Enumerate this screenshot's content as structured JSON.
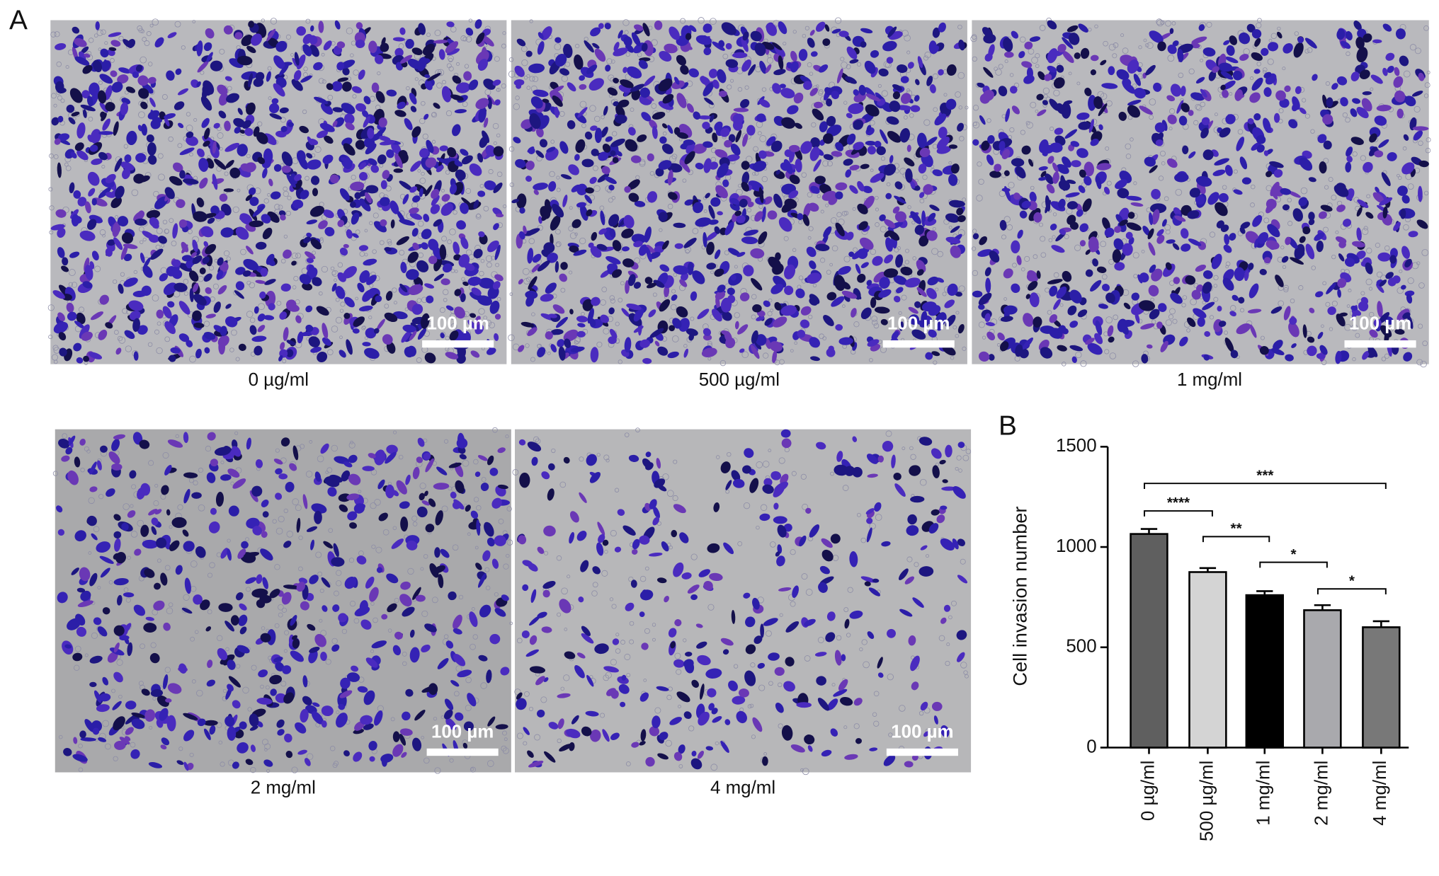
{
  "panel_a": {
    "label": "A",
    "images": [
      {
        "caption": "0 µg/ml",
        "scale_bar": "100 µm"
      },
      {
        "caption": "500 µg/ml",
        "scale_bar": "100 µm"
      },
      {
        "caption": "1 mg/ml",
        "scale_bar": "100 µm"
      },
      {
        "caption": "2 mg/ml",
        "scale_bar": "100 µm"
      },
      {
        "caption": "4 mg/ml",
        "scale_bar": "100 µm"
      }
    ]
  },
  "chart_data": {
    "type": "bar",
    "panel_label": "B",
    "y_label": "Cell invasion number",
    "categories": [
      "0 µg/ml",
      "500 µg/ml",
      "1 mg/ml",
      "2 mg/ml",
      "4 mg/ml"
    ],
    "values": [
      1065,
      875,
      760,
      685,
      600
    ],
    "errors": [
      25,
      20,
      20,
      25,
      30
    ],
    "colors": [
      "#5f5f5f",
      "#d4d4d4",
      "#000000",
      "#a9a9ad",
      "#787878"
    ],
    "ylim": [
      0,
      1500
    ],
    "yticks": [
      0,
      500,
      1000,
      1500
    ],
    "annotations": [
      "***",
      "****",
      "**",
      "*",
      "*"
    ]
  }
}
